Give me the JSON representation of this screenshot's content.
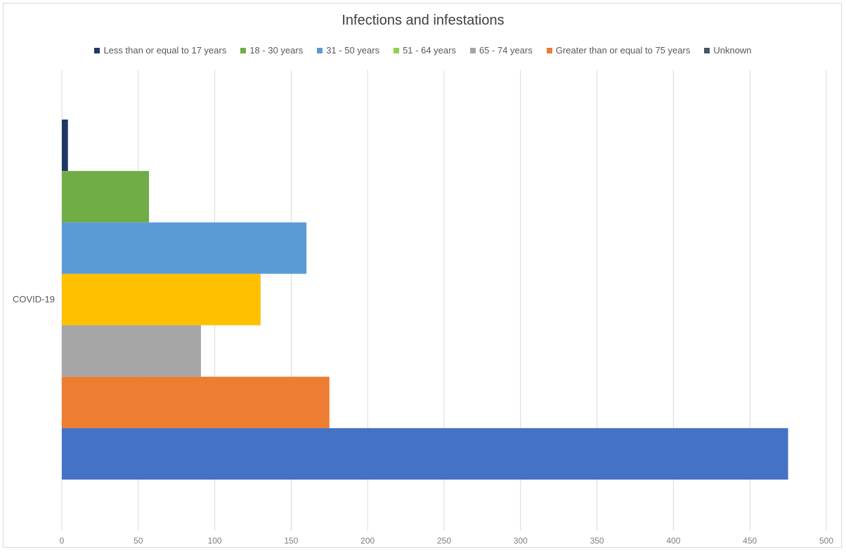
{
  "chart_data": {
    "type": "bar",
    "orientation": "horizontal",
    "title": "Infections and infestations",
    "categories": [
      "COVID-19"
    ],
    "series": [
      {
        "name": "Less than or equal to 17 years",
        "values": [
          4
        ],
        "color": "#1f3864"
      },
      {
        "name": "18 - 30 years",
        "values": [
          57
        ],
        "color": "#70ad47"
      },
      {
        "name": "31 - 50 years",
        "values": [
          160
        ],
        "color": "#5b9bd5"
      },
      {
        "name": "51 - 64 years",
        "values": [
          130
        ],
        "color": "#ffc000"
      },
      {
        "name": "65 - 74 years",
        "values": [
          91
        ],
        "color": "#a5a5a5"
      },
      {
        "name": "Greater than or equal to 75 years",
        "values": [
          175
        ],
        "color": "#ed7d31"
      },
      {
        "name": "Unknown",
        "values": [
          475
        ],
        "color": "#4472c4"
      }
    ],
    "legend_colors": [
      "#1f3864",
      "#70ad47",
      "#5b9bd5",
      "#92d050",
      "#a5a5a5",
      "#ed7d31",
      "#44546a"
    ],
    "xlim": [
      0,
      500
    ],
    "xticks": [
      0,
      50,
      100,
      150,
      200,
      250,
      300,
      350,
      400,
      450,
      500
    ],
    "grid": true,
    "legend_position": "top"
  }
}
